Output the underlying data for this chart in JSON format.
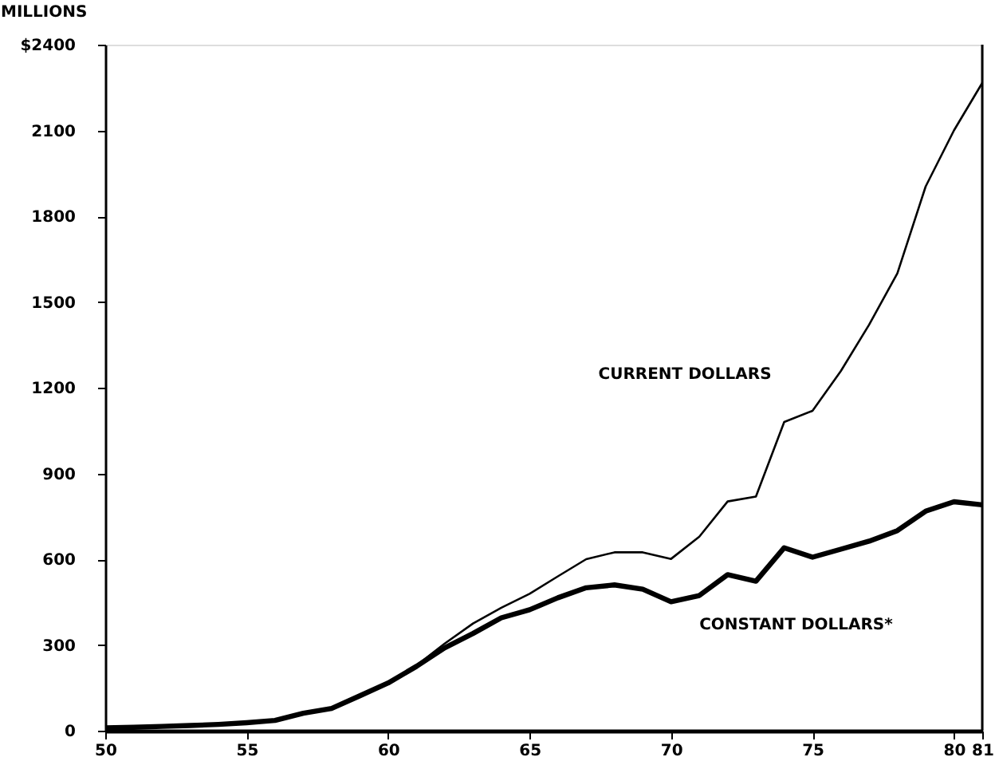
{
  "chart_data": {
    "type": "line",
    "ylabel": "MILLIONS",
    "x": [
      50,
      51,
      52,
      53,
      54,
      55,
      56,
      57,
      58,
      59,
      60,
      61,
      62,
      63,
      64,
      65,
      66,
      67,
      68,
      69,
      70,
      71,
      72,
      73,
      74,
      75,
      76,
      77,
      78,
      79,
      80,
      81
    ],
    "series": [
      {
        "name": "CURRENT DOLLARS",
        "color": "#000000",
        "line_style": "solid",
        "values": [
          10,
          12,
          15,
          18,
          22,
          28,
          36,
          61,
          78,
          122,
          167,
          228,
          305,
          375,
          430,
          479,
          540,
          600,
          624,
          624,
          601,
          679,
          802,
          819,
          1080,
          1119,
          1258,
          1420,
          1600,
          1904,
          2100,
          2266
        ]
      },
      {
        "name": "CONSTANT DOLLARS*",
        "color": "#000000",
        "line_style": "solid",
        "values": [
          10,
          12,
          15,
          18,
          22,
          28,
          36,
          61,
          78,
          122,
          167,
          225,
          290,
          340,
          395,
          423,
          465,
          500,
          510,
          495,
          451,
          473,
          546,
          523,
          640,
          607,
          635,
          663,
          700,
          768,
          801,
          790
        ]
      }
    ],
    "xlim": [
      50,
      81
    ],
    "xticks": [
      50,
      55,
      60,
      65,
      70,
      75,
      80,
      81
    ],
    "ylim": [
      0,
      2400
    ],
    "yticks": [
      0,
      300,
      600,
      900,
      1200,
      1500,
      1800,
      2100,
      {
        "value": 2400,
        "label": "$2400"
      }
    ],
    "grid": false,
    "legend": false,
    "marker": "none"
  }
}
